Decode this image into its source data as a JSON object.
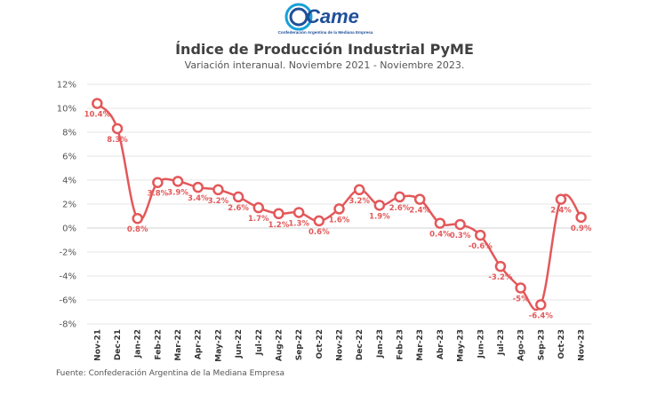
{
  "logo": {
    "text": "Came",
    "tagline": "Confederación Argentina de la Mediana Empresa"
  },
  "title": "Índice de Producción Industrial PyME",
  "subtitle": "Variación interanual. Noviembre 2021 - Noviembre 2023.",
  "source": "Fuente: Confederación Argentina de la Mediana Empresa",
  "colors": {
    "line": "#e3585a",
    "label": "#e3585a",
    "logo_blue": "#1f4f9a",
    "logo_accent": "#16a0d8"
  },
  "chart_data": {
    "type": "line",
    "title": "Índice de Producción Industrial PyME",
    "xlabel": "",
    "ylabel": "",
    "ylim": [
      -8,
      12
    ],
    "yticks": [
      "-8%",
      "-6%",
      "-4%",
      "-2%",
      "0%",
      "2%",
      "4%",
      "6%",
      "8%",
      "10%",
      "12%"
    ],
    "ytick_values": [
      -8,
      -6,
      -4,
      -2,
      0,
      2,
      4,
      6,
      8,
      10,
      12
    ],
    "grid": true,
    "categories": [
      "Nov-21",
      "Dec-21",
      "Jan-22",
      "Feb-22",
      "Mar-22",
      "Apr-22",
      "May-22",
      "Jun-22",
      "Jul-22",
      "Aug-22",
      "Sep-22",
      "Oct-22",
      "Nov-22",
      "Dec-22",
      "Jan-23",
      "Feb-23",
      "Mar-23",
      "Abr-23",
      "May-23",
      "Jun-23",
      "Jul-23",
      "Ago-23",
      "Sep-23",
      "Oct-23",
      "Nov-23"
    ],
    "values": [
      10.4,
      8.3,
      0.8,
      3.8,
      3.9,
      3.4,
      3.2,
      2.6,
      1.7,
      1.2,
      1.3,
      0.6,
      1.6,
      3.2,
      1.9,
      2.6,
      2.4,
      0.4,
      0.3,
      -0.6,
      -3.2,
      -5,
      -6.4,
      2.4,
      0.9
    ],
    "data_labels": [
      "10.4%",
      "8.3%",
      "0.8%",
      "3.8%",
      "3.9%",
      "3.4%",
      "3.2%",
      "2.6%",
      "1.7%",
      "1.2%",
      "1.3%",
      "0.6%",
      "1.6%",
      "3.2%",
      "1.9%",
      "2.6%",
      "2.4%",
      "0.4%",
      "0.3%",
      "-0.6%",
      "-3.2%",
      "-5%",
      "-6.4%",
      "2.4%",
      "0.9%"
    ]
  }
}
